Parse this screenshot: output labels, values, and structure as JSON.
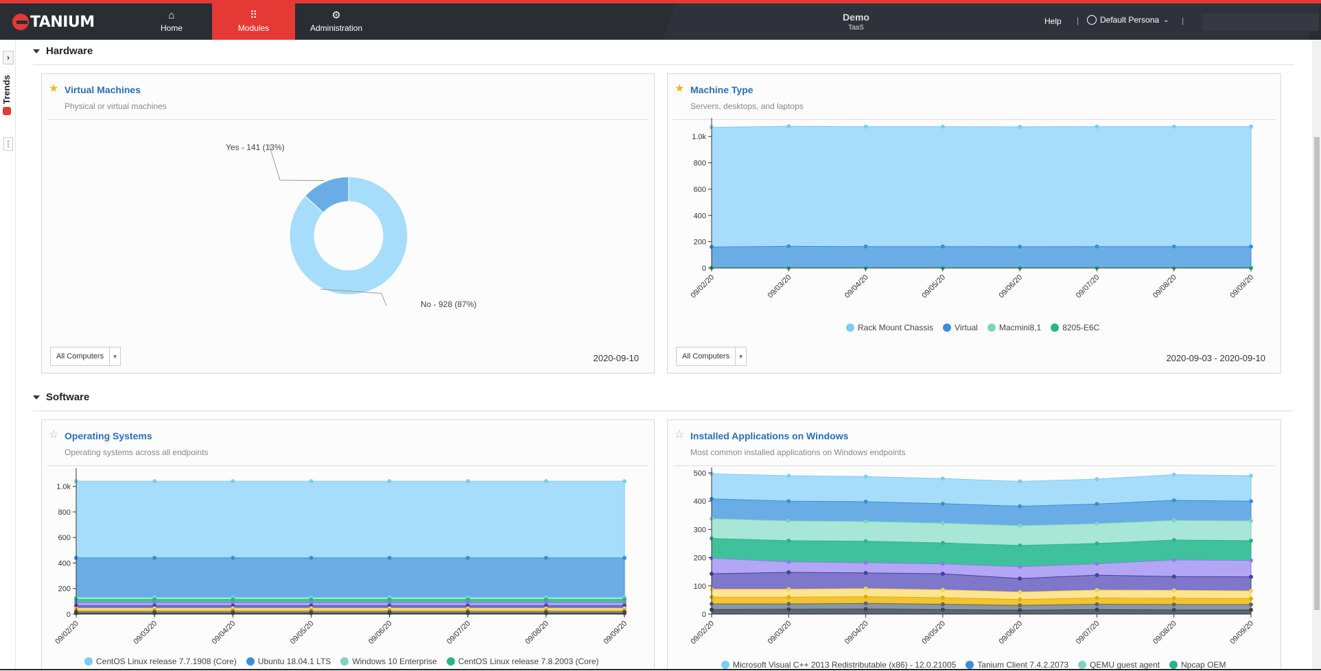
{
  "topbar": {
    "brand": "TANIUM",
    "nav": [
      {
        "label": "Home",
        "icon": "home-icon"
      },
      {
        "label": "Modules",
        "icon": "grid-icon"
      },
      {
        "label": "Administration",
        "icon": "gears-icon"
      }
    ],
    "env_title": "Demo",
    "env_sub": "TaaS",
    "help": "Help",
    "persona": "Default Persona",
    "accent": "#e53935"
  },
  "rail": {
    "label": "Trends"
  },
  "sections": {
    "hardware": "Hardware",
    "software": "Software"
  },
  "cards": {
    "vm": {
      "title": "Virtual Machines",
      "subtitle": "Physical or virtual machines",
      "filter": "All Computers",
      "date": "2020-09-10",
      "favorite": true
    },
    "mt": {
      "title": "Machine Type",
      "subtitle": "Servers, desktops, and laptops",
      "filter": "All Computers",
      "date": "2020-09-03 - 2020-09-10",
      "favorite": true
    },
    "os": {
      "title": "Operating Systems",
      "subtitle": "Operating systems across all endpoints",
      "favorite": false
    },
    "apps": {
      "title": "Installed Applications on Windows",
      "subtitle": "Most common installed applications on Windows endpoints",
      "favorite": false
    }
  },
  "chart_data": [
    {
      "type": "pie",
      "title": "Virtual Machines",
      "slices": [
        {
          "name": "Yes",
          "value": 141,
          "label": "Yes - 141 (13%)",
          "color": "#6aade6"
        },
        {
          "name": "No",
          "value": 928,
          "label": "No - 928 (87%)",
          "color": "#a6ddfb"
        }
      ]
    },
    {
      "type": "area",
      "title": "Machine Type",
      "x": [
        "09/02/20",
        "09/03/20",
        "09/04/20",
        "09/05/20",
        "09/06/20",
        "09/07/20",
        "09/08/20",
        "09/09/20"
      ],
      "yticks": [
        "0",
        "200",
        "400",
        "600",
        "800",
        "1.0k"
      ],
      "ylim": [
        0,
        1100
      ],
      "series": [
        {
          "name": "Rack Mount Chassis",
          "color": "#a6ddfb",
          "dot": "#7ccdf5",
          "values": [
            1070,
            1078,
            1075,
            1075,
            1074,
            1075,
            1075,
            1075
          ]
        },
        {
          "name": "Virtual",
          "color": "#6aade6",
          "dot": "#3b8ed8",
          "values": [
            160,
            165,
            163,
            163,
            162,
            163,
            163,
            163
          ]
        },
        {
          "name": "Macmini8,1",
          "color": "#a8e6d6",
          "dot": "#7fd4c0",
          "values": [
            2,
            2,
            2,
            2,
            2,
            2,
            2,
            2
          ]
        },
        {
          "name": "8205-E6C",
          "color": "#3fc29c",
          "dot": "#28b48a",
          "values": [
            1,
            1,
            1,
            1,
            1,
            1,
            1,
            1
          ]
        }
      ]
    },
    {
      "type": "area",
      "title": "Operating Systems",
      "x": [
        "09/02/20",
        "09/03/20",
        "09/04/20",
        "09/05/20",
        "09/06/20",
        "09/07/20",
        "09/08/20",
        "09/09/20"
      ],
      "yticks": [
        "0",
        "200",
        "400",
        "600",
        "800",
        "1.0k"
      ],
      "ylim": [
        0,
        1100
      ],
      "series": [
        {
          "name": "CentOS Linux release 7.7.1908 (Core)",
          "color": "#a6ddfb",
          "dot": "#7ccdf5",
          "values": [
            1040,
            1040,
            1040,
            1040,
            1040,
            1040,
            1040,
            1040
          ]
        },
        {
          "name": "Ubuntu 18.04.1 LTS",
          "color": "#6aade6",
          "dot": "#3b8ed8",
          "values": [
            440,
            440,
            440,
            440,
            440,
            440,
            440,
            440
          ]
        },
        {
          "name": "Windows 10 Enterprise",
          "color": "#a8e6d6",
          "dot": "#7fd4c0",
          "values": [
            130,
            130,
            130,
            130,
            130,
            130,
            130,
            130
          ]
        },
        {
          "name": "CentOS Linux release 7.8.2003 (Core)",
          "color": "#3fc29c",
          "dot": "#28b48a",
          "values": [
            115,
            115,
            115,
            115,
            115,
            115,
            115,
            115
          ]
        },
        {
          "name": "",
          "color": "#b2a6f5",
          "dot": "#8b7ae8",
          "values": [
            90,
            90,
            90,
            90,
            90,
            90,
            90,
            90
          ]
        },
        {
          "name": "",
          "color": "#7f77c9",
          "dot": "#4a3f9e",
          "values": [
            65,
            65,
            65,
            65,
            65,
            65,
            65,
            65
          ]
        },
        {
          "name": "",
          "color": "#fde48f",
          "dot": "#f3d05a",
          "values": [
            45,
            45,
            45,
            45,
            45,
            45,
            45,
            45
          ]
        },
        {
          "name": "",
          "color": "#f3c42e",
          "dot": "#e0ad12",
          "values": [
            30,
            30,
            30,
            30,
            30,
            30,
            30,
            30
          ]
        },
        {
          "name": "",
          "color": "#8a96a3",
          "dot": "#5c6773",
          "values": [
            18,
            18,
            18,
            18,
            18,
            18,
            18,
            18
          ]
        },
        {
          "name": "",
          "color": "#5a6672",
          "dot": "#3a444f",
          "values": [
            8,
            8,
            8,
            8,
            8,
            8,
            8,
            8
          ]
        }
      ]
    },
    {
      "type": "area",
      "title": "Installed Applications on Windows",
      "x": [
        "09/02/20",
        "09/03/20",
        "09/04/20",
        "09/05/20",
        "09/06/20",
        "09/07/20",
        "09/08/20",
        "09/09/20"
      ],
      "yticks": [
        "0",
        "100",
        "200",
        "300",
        "400",
        "500"
      ],
      "ylim": [
        0,
        500
      ],
      "series": [
        {
          "name": "Microsoft Visual C++ 2013 Redistributable (x86) - 12.0.21005",
          "color": "#a6ddfb",
          "dot": "#7ccdf5",
          "values": [
            497,
            490,
            487,
            480,
            470,
            478,
            494,
            490
          ]
        },
        {
          "name": "Tanium Client 7.4.2.2073",
          "color": "#6aade6",
          "dot": "#3b8ed8",
          "values": [
            408,
            400,
            398,
            391,
            382,
            390,
            403,
            400
          ]
        },
        {
          "name": "QEMU guest agent",
          "color": "#a8e6d6",
          "dot": "#7fd4c0",
          "values": [
            338,
            330,
            328,
            322,
            313,
            320,
            332,
            330
          ]
        },
        {
          "name": "Npcap OEM",
          "color": "#3fc29c",
          "dot": "#28b48a",
          "values": [
            268,
            260,
            258,
            252,
            243,
            250,
            262,
            260
          ]
        },
        {
          "name": "",
          "color": "#b2a6f5",
          "dot": "#8b7ae8",
          "values": [
            198,
            185,
            182,
            178,
            168,
            178,
            192,
            190
          ]
        },
        {
          "name": "",
          "color": "#7f77c9",
          "dot": "#4a3f9e",
          "values": [
            143,
            148,
            146,
            143,
            126,
            138,
            133,
            132
          ]
        },
        {
          "name": "",
          "color": "#fde48f",
          "dot": "#f3d05a",
          "values": [
            88,
            88,
            90,
            86,
            78,
            85,
            84,
            82
          ]
        },
        {
          "name": "",
          "color": "#f3c42e",
          "dot": "#e0ad12",
          "values": [
            60,
            60,
            62,
            58,
            52,
            57,
            56,
            55
          ]
        },
        {
          "name": "",
          "color": "#8a96a3",
          "dot": "#5c6773",
          "values": [
            36,
            36,
            38,
            35,
            31,
            35,
            34,
            34
          ]
        },
        {
          "name": "",
          "color": "#5a6672",
          "dot": "#3a444f",
          "values": [
            16,
            17,
            18,
            16,
            14,
            16,
            15,
            15
          ]
        }
      ]
    }
  ]
}
